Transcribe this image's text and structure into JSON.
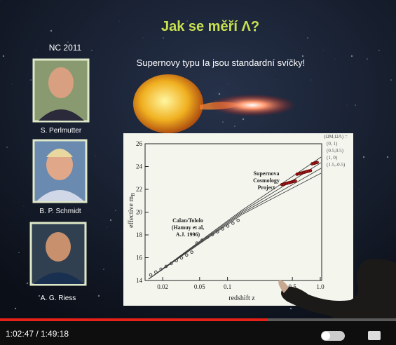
{
  "slide": {
    "award": "NC 2011",
    "title": "Jak se měří Λ?",
    "subtitle": "Supernovy typu Ia jsou standardní svíčky!",
    "laureates": [
      "S. Perlmutter",
      "B. P. Schmidt",
      "A. G. Riess"
    ],
    "plot": {
      "y_label": "effective m",
      "y_label_sub": "B",
      "x_label": "redshift z",
      "yticks": [
        "14",
        "16",
        "18",
        "20",
        "22",
        "24",
        "26"
      ],
      "xticks": [
        "0.02",
        "0.05",
        "0.1",
        "0.5",
        "1.0"
      ],
      "annotations": [
        "Supernova",
        "Cosmology",
        "Project",
        "Calan/Tololo",
        "(Hamuy et al,",
        "A.J. 1996)"
      ],
      "legend": [
        "(ΩM,ΩΛ) =",
        "(0, 1)",
        "(0.5,0.5)",
        "(1, 0)",
        "(1.5,-0.5)"
      ]
    }
  },
  "player": {
    "time": "1:02:47 / 1:49:18"
  }
}
